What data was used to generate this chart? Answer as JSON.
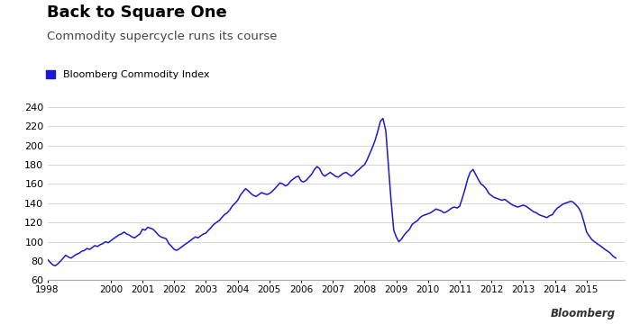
{
  "title": "Back to Square One",
  "subtitle": "Commodity supercycle runs its course",
  "legend_label": "Bloomberg Commodity Index",
  "line_color": "#1a1acc",
  "background_color": "#ffffff",
  "ylabel_ticks": [
    60,
    80,
    100,
    120,
    140,
    160,
    180,
    200,
    220,
    240
  ],
  "xlim": [
    1998.0,
    2016.2
  ],
  "ylim": [
    60,
    250
  ],
  "watermark": "Bloomberg",
  "xtick_labels": [
    "1998",
    "2000",
    "2001",
    "2002",
    "2003",
    "2004",
    "2005",
    "2006",
    "2007",
    "2008",
    "2009",
    "2010",
    "2011",
    "2012",
    "2013",
    "2014",
    "2015"
  ],
  "xtick_positions": [
    1998,
    2000,
    2001,
    2002,
    2003,
    2004,
    2005,
    2006,
    2007,
    2008,
    2009,
    2010,
    2011,
    2012,
    2013,
    2014,
    2015
  ],
  "years": [
    1998.0,
    1998.08,
    1998.17,
    1998.25,
    1998.33,
    1998.42,
    1998.5,
    1998.58,
    1998.67,
    1998.75,
    1998.83,
    1998.92,
    1999.0,
    1999.08,
    1999.17,
    1999.25,
    1999.33,
    1999.42,
    1999.5,
    1999.58,
    1999.67,
    1999.75,
    1999.83,
    1999.92,
    2000.0,
    2000.08,
    2000.17,
    2000.25,
    2000.33,
    2000.42,
    2000.5,
    2000.58,
    2000.67,
    2000.75,
    2000.83,
    2000.92,
    2001.0,
    2001.08,
    2001.17,
    2001.25,
    2001.33,
    2001.42,
    2001.5,
    2001.58,
    2001.67,
    2001.75,
    2001.83,
    2001.92,
    2002.0,
    2002.08,
    2002.17,
    2002.25,
    2002.33,
    2002.42,
    2002.5,
    2002.58,
    2002.67,
    2002.75,
    2002.83,
    2002.92,
    2003.0,
    2003.08,
    2003.17,
    2003.25,
    2003.33,
    2003.42,
    2003.5,
    2003.58,
    2003.67,
    2003.75,
    2003.83,
    2003.92,
    2004.0,
    2004.08,
    2004.17,
    2004.25,
    2004.33,
    2004.42,
    2004.5,
    2004.58,
    2004.67,
    2004.75,
    2004.83,
    2004.92,
    2005.0,
    2005.08,
    2005.17,
    2005.25,
    2005.33,
    2005.42,
    2005.5,
    2005.58,
    2005.67,
    2005.75,
    2005.83,
    2005.92,
    2006.0,
    2006.08,
    2006.17,
    2006.25,
    2006.33,
    2006.42,
    2006.5,
    2006.58,
    2006.67,
    2006.75,
    2006.83,
    2006.92,
    2007.0,
    2007.08,
    2007.17,
    2007.25,
    2007.33,
    2007.42,
    2007.5,
    2007.58,
    2007.67,
    2007.75,
    2007.83,
    2007.92,
    2008.0,
    2008.08,
    2008.17,
    2008.25,
    2008.33,
    2008.42,
    2008.5,
    2008.58,
    2008.67,
    2008.75,
    2008.83,
    2008.92,
    2009.0,
    2009.08,
    2009.17,
    2009.25,
    2009.33,
    2009.42,
    2009.5,
    2009.58,
    2009.67,
    2009.75,
    2009.83,
    2009.92,
    2010.0,
    2010.08,
    2010.17,
    2010.25,
    2010.33,
    2010.42,
    2010.5,
    2010.58,
    2010.67,
    2010.75,
    2010.83,
    2010.92,
    2011.0,
    2011.08,
    2011.17,
    2011.25,
    2011.33,
    2011.42,
    2011.5,
    2011.58,
    2011.67,
    2011.75,
    2011.83,
    2011.92,
    2012.0,
    2012.08,
    2012.17,
    2012.25,
    2012.33,
    2012.42,
    2012.5,
    2012.58,
    2012.67,
    2012.75,
    2012.83,
    2012.92,
    2013.0,
    2013.08,
    2013.17,
    2013.25,
    2013.33,
    2013.42,
    2013.5,
    2013.58,
    2013.67,
    2013.75,
    2013.83,
    2013.92,
    2014.0,
    2014.08,
    2014.17,
    2014.25,
    2014.33,
    2014.42,
    2014.5,
    2014.58,
    2014.67,
    2014.75,
    2014.83,
    2014.92,
    2015.0,
    2015.08,
    2015.17,
    2015.25,
    2015.33,
    2015.42,
    2015.5,
    2015.58,
    2015.67,
    2015.75,
    2015.83,
    2015.92
  ],
  "values": [
    82,
    79,
    76,
    75,
    77,
    80,
    83,
    86,
    84,
    83,
    85,
    87,
    88,
    90,
    91,
    93,
    92,
    94,
    96,
    95,
    97,
    98,
    100,
    99,
    101,
    103,
    105,
    107,
    108,
    110,
    108,
    107,
    105,
    104,
    106,
    108,
    113,
    112,
    115,
    114,
    113,
    110,
    107,
    105,
    104,
    103,
    98,
    95,
    92,
    91,
    93,
    95,
    97,
    99,
    101,
    103,
    105,
    104,
    106,
    108,
    109,
    112,
    115,
    118,
    120,
    122,
    125,
    128,
    130,
    133,
    137,
    140,
    143,
    148,
    152,
    155,
    153,
    150,
    148,
    147,
    149,
    151,
    150,
    149,
    150,
    152,
    155,
    158,
    161,
    160,
    158,
    159,
    163,
    165,
    167,
    168,
    163,
    162,
    164,
    167,
    170,
    175,
    178,
    176,
    170,
    168,
    170,
    172,
    170,
    168,
    167,
    169,
    171,
    172,
    170,
    168,
    170,
    173,
    175,
    178,
    180,
    185,
    192,
    198,
    205,
    215,
    225,
    228,
    215,
    180,
    145,
    112,
    105,
    100,
    103,
    107,
    110,
    113,
    118,
    120,
    122,
    125,
    127,
    128,
    129,
    130,
    132,
    134,
    133,
    132,
    130,
    131,
    133,
    135,
    136,
    135,
    137,
    145,
    155,
    165,
    172,
    175,
    170,
    165,
    160,
    158,
    155,
    150,
    148,
    146,
    145,
    144,
    143,
    144,
    142,
    140,
    138,
    137,
    136,
    137,
    138,
    137,
    135,
    133,
    131,
    130,
    128,
    127,
    126,
    125,
    127,
    128,
    132,
    135,
    137,
    139,
    140,
    141,
    142,
    141,
    138,
    135,
    130,
    120,
    110,
    106,
    102,
    100,
    98,
    96,
    94,
    92,
    90,
    88,
    85,
    83
  ]
}
